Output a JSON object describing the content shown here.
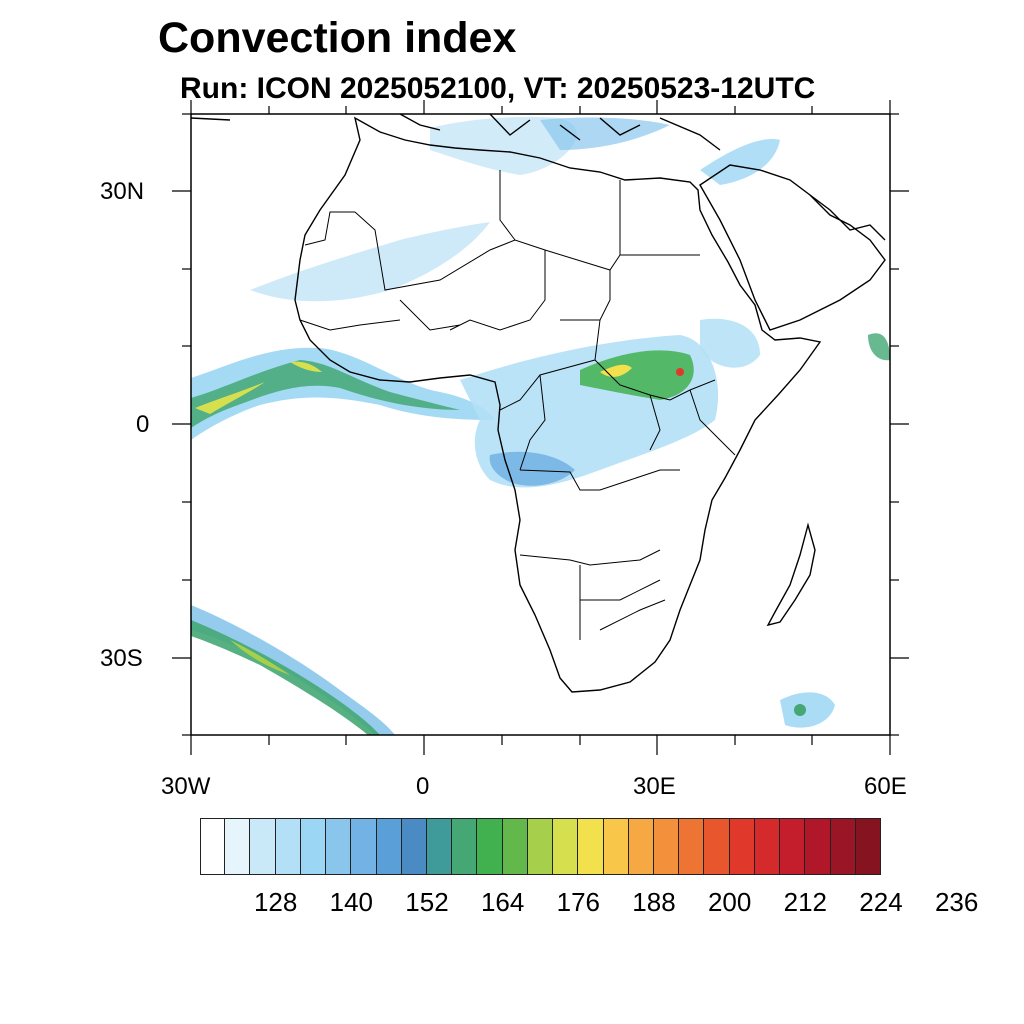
{
  "title": "Convection index",
  "subtitle": "Run: ICON 2025052100,  VT: 20250523-12UTC",
  "axes": {
    "lat_labels": [
      "30N",
      "0",
      "30S"
    ],
    "lon_labels": [
      "30W",
      "0",
      "30E",
      "60E"
    ]
  },
  "colorbar": {
    "colors": [
      "#ffffff",
      "#e6f5fc",
      "#c9e8f8",
      "#b3e0f6",
      "#9bd6f4",
      "#8ac6ec",
      "#72b2e4",
      "#5b9fd8",
      "#4b8bc4",
      "#3f9a9a",
      "#44a774",
      "#41b04f",
      "#62b84b",
      "#a6cf4b",
      "#d6df4e",
      "#f2e04d",
      "#f8c74a",
      "#f6a942",
      "#f2903c",
      "#ee7434",
      "#e8562e",
      "#e0392b",
      "#d42a2c",
      "#c41e2d",
      "#b0182a",
      "#9a1626",
      "#861320"
    ],
    "labels": [
      "128",
      "140",
      "152",
      "164",
      "176",
      "188",
      "200",
      "212",
      "224",
      "236"
    ]
  }
}
